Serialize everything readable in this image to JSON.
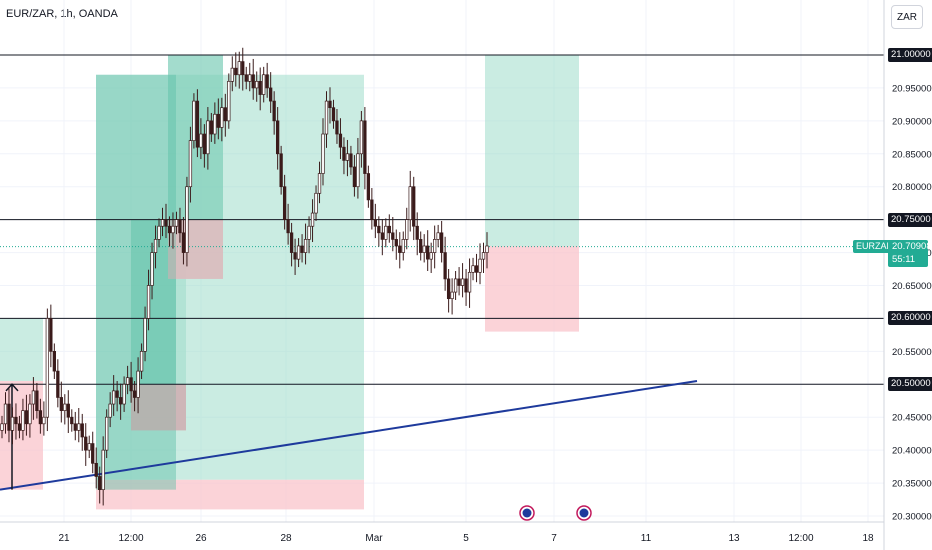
{
  "header": {
    "title": "EUR/ZAR, 1h, OANDA",
    "currency_button": "ZAR"
  },
  "colors": {
    "up": "#26a69a",
    "down": "#ef5350",
    "candle_outline": "#3a1b1b",
    "target_zone": "#9fdccb",
    "target_zone_dark": "#5bbfa6",
    "stop_zone": "#f9c4cb",
    "trendline": "#1e3a9c",
    "grid": "#f0f3fa",
    "price_tag_bg": "#131722",
    "live_tag_bg": "#22ab94"
  },
  "chart_data": {
    "type": "candlestick",
    "instrument": "EUR/ZAR",
    "timeframe": "1h",
    "broker": "OANDA",
    "x_ticks": [
      "21",
      "12:00",
      "26",
      "28",
      "Mar",
      "5",
      "7",
      "11",
      "13",
      "12:00",
      "18"
    ],
    "y_ticks": [
      "20.30000",
      "20.35000",
      "20.40000",
      "20.45000",
      "20.50000",
      "20.55000",
      "20.60000",
      "20.65000",
      "20.70000",
      "20.75000",
      "20.80000",
      "20.85000",
      "20.90000",
      "20.95000",
      "21.00000"
    ],
    "ylim": [
      20.29,
      21.06
    ],
    "horizontal_levels": [
      {
        "price": 21.0,
        "label": "21.00000"
      },
      {
        "price": 20.75,
        "label": "20.75000"
      },
      {
        "price": 20.6,
        "label": "20.60000"
      },
      {
        "price": 20.5,
        "label": "20.50000"
      }
    ],
    "last_price": {
      "symbol": "EURZAR",
      "value": "20.70908",
      "countdown": "55:11"
    },
    "close_path": [
      20.44,
      20.47,
      20.43,
      20.45,
      20.44,
      20.43,
      20.46,
      20.44,
      20.47,
      20.49,
      20.46,
      20.44,
      20.45,
      20.6,
      20.55,
      20.52,
      20.48,
      20.46,
      20.47,
      20.45,
      20.44,
      20.43,
      20.44,
      20.42,
      20.4,
      20.41,
      20.38,
      20.36,
      20.34,
      20.4,
      20.45,
      20.47,
      20.49,
      20.48,
      20.47,
      20.5,
      20.51,
      20.49,
      20.48,
      20.52,
      20.55,
      20.6,
      20.65,
      20.7,
      20.72,
      20.74,
      20.75,
      20.74,
      20.73,
      20.74,
      20.75,
      20.73,
      20.7,
      20.8,
      20.87,
      20.93,
      20.86,
      20.88,
      20.85,
      20.9,
      20.88,
      20.91,
      20.89,
      20.92,
      20.9,
      20.96,
      20.98,
      20.97,
      20.99,
      20.97,
      20.96,
      20.97,
      20.95,
      20.96,
      20.94,
      20.97,
      20.95,
      20.93,
      20.9,
      20.85,
      20.8,
      20.75,
      20.73,
      20.7,
      20.69,
      20.71,
      20.7,
      20.72,
      20.74,
      20.76,
      20.79,
      20.82,
      20.88,
      20.93,
      20.92,
      20.9,
      20.88,
      20.86,
      20.84,
      20.85,
      20.83,
      20.8,
      20.85,
      20.9,
      20.82,
      20.78,
      20.75,
      20.74,
      20.73,
      20.72,
      20.74,
      20.73,
      20.72,
      20.71,
      20.7,
      20.72,
      20.75,
      20.8,
      20.74,
      20.72,
      20.7,
      20.71,
      20.69,
      20.7,
      20.72,
      20.73,
      20.7,
      20.66,
      20.63,
      20.64,
      20.66,
      20.65,
      20.66,
      20.64,
      20.67,
      20.68,
      20.67,
      20.69,
      20.7,
      20.71
    ],
    "close_path_start": "Feb 20 (approx)",
    "close_path_end": "Mar 5 (last candle)",
    "trendline": {
      "from": {
        "date": "Feb 20",
        "price": 20.34
      },
      "to": {
        "date": "Mar 12",
        "price": 20.505
      }
    },
    "position_boxes": [
      {
        "type": "long",
        "target": 20.6,
        "entry": 20.505,
        "stop": 20.34
      },
      {
        "type": "long",
        "target": 20.97,
        "entry": 20.355,
        "stop": 20.31
      },
      {
        "type": "long",
        "target": 20.75,
        "entry": 20.5,
        "stop": 20.43
      },
      {
        "type": "long",
        "target": 21.0,
        "entry": 20.75,
        "stop": 20.66
      },
      {
        "type": "long",
        "target": 21.0,
        "entry": 20.71,
        "stop": 20.58
      }
    ],
    "event_markers": 2,
    "grid": true
  }
}
